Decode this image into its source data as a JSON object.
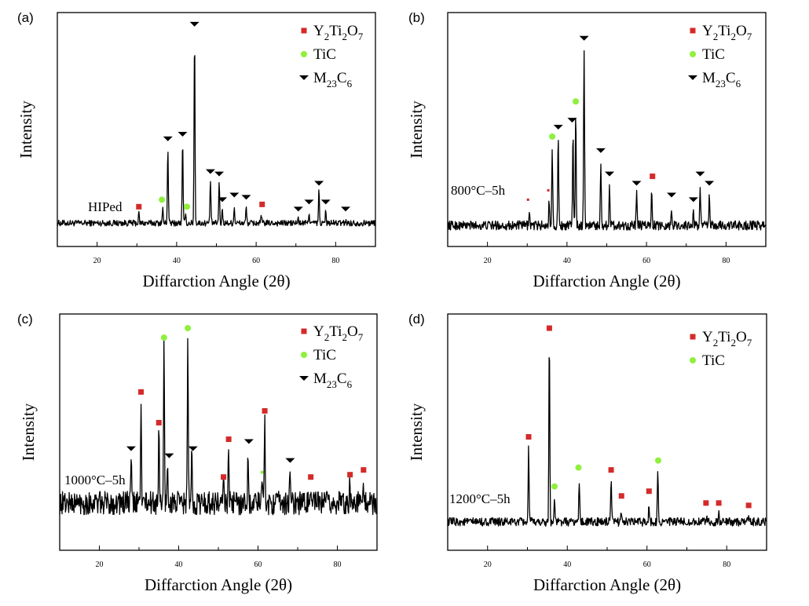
{
  "chart_data": [
    {
      "type": "line",
      "panel_label": "(a)",
      "xlabel": "Diffarction Angle (2θ)",
      "ylabel": "Intensity",
      "xlim": [
        10,
        90
      ],
      "ylim": [
        0,
        100
      ],
      "xticks": [
        20,
        40,
        60,
        80
      ],
      "annotation": "HIPed",
      "legend_position": "top-right",
      "legend": [
        "Y2Ti2O7",
        "TiC",
        "M23C6"
      ],
      "baseline": 10,
      "noise": 1.3,
      "peaks": [
        [
          30.5,
          14
        ],
        [
          36.5,
          16
        ],
        [
          37.8,
          43
        ],
        [
          41.5,
          45
        ],
        [
          42.2,
          14
        ],
        [
          44.5,
          92
        ],
        [
          48.5,
          29
        ],
        [
          50.7,
          28
        ],
        [
          51.5,
          16
        ],
        [
          54.5,
          17
        ],
        [
          57.5,
          17
        ],
        [
          61.3,
          13
        ],
        [
          70.6,
          12
        ],
        [
          73.3,
          15
        ],
        [
          75.8,
          24
        ],
        [
          77.5,
          15
        ],
        [
          82.5,
          11
        ]
      ],
      "markers": [
        {
          "phase": "Y2Ti2O7",
          "x": 30.5,
          "y": 17
        },
        {
          "phase": "Y2Ti2O7",
          "x": 61.5,
          "y": 18
        },
        {
          "phase": "TiC",
          "x": 36.3,
          "y": 20
        },
        {
          "phase": "TiC",
          "x": 42.6,
          "y": 17
        },
        {
          "phase": "M23C6",
          "x": 37.8,
          "y": 46
        },
        {
          "phase": "M23C6",
          "x": 41.5,
          "y": 48
        },
        {
          "phase": "M23C6",
          "x": 44.5,
          "y": 95
        },
        {
          "phase": "M23C6",
          "x": 48.5,
          "y": 32
        },
        {
          "phase": "M23C6",
          "x": 50.7,
          "y": 31
        },
        {
          "phase": "M23C6",
          "x": 51.5,
          "y": 20
        },
        {
          "phase": "M23C6",
          "x": 54.5,
          "y": 22
        },
        {
          "phase": "M23C6",
          "x": 57.5,
          "y": 21
        },
        {
          "phase": "M23C6",
          "x": 70.6,
          "y": 16
        },
        {
          "phase": "M23C6",
          "x": 73.3,
          "y": 19
        },
        {
          "phase": "M23C6",
          "x": 75.8,
          "y": 27
        },
        {
          "phase": "M23C6",
          "x": 77.5,
          "y": 19
        },
        {
          "phase": "M23C6",
          "x": 82.5,
          "y": 16
        }
      ]
    },
    {
      "type": "line",
      "panel_label": "(b)",
      "xlabel": "Diffarction Angle (2θ)",
      "ylabel": "Intensity",
      "xlim": [
        10,
        90
      ],
      "ylim": [
        0,
        100
      ],
      "xticks": [
        20,
        40,
        60,
        80
      ],
      "annotation": "800°C–5h",
      "legend_position": "top-right",
      "legend": [
        "Y2Ti2O7",
        "TiC",
        "M23C6"
      ],
      "baseline": 9,
      "noise": 2,
      "peaks": [
        [
          30.5,
          16
        ],
        [
          35.5,
          19
        ],
        [
          36.3,
          43
        ],
        [
          37.8,
          47
        ],
        [
          41.5,
          50
        ],
        [
          42.2,
          59
        ],
        [
          44.3,
          84
        ],
        [
          48.5,
          37
        ],
        [
          50.7,
          27
        ],
        [
          57.5,
          23
        ],
        [
          61.3,
          26
        ],
        [
          66.3,
          16
        ],
        [
          71.8,
          15
        ],
        [
          73.5,
          26
        ],
        [
          75.8,
          22
        ]
      ],
      "markers": [
        {
          "phase": "Y2Ti2O7",
          "x": 30.2,
          "y": 20,
          "small": true
        },
        {
          "phase": "Y2Ti2O7",
          "x": 35.3,
          "y": 24,
          "small": true
        },
        {
          "phase": "Y2Ti2O7",
          "x": 61.5,
          "y": 30
        },
        {
          "phase": "TiC",
          "x": 36.3,
          "y": 47
        },
        {
          "phase": "TiC",
          "x": 42.2,
          "y": 62
        },
        {
          "phase": "M23C6",
          "x": 37.8,
          "y": 51
        },
        {
          "phase": "M23C6",
          "x": 41.3,
          "y": 54
        },
        {
          "phase": "M23C6",
          "x": 44.3,
          "y": 89
        },
        {
          "phase": "M23C6",
          "x": 48.5,
          "y": 41
        },
        {
          "phase": "M23C6",
          "x": 50.7,
          "y": 31
        },
        {
          "phase": "M23C6",
          "x": 57.5,
          "y": 27
        },
        {
          "phase": "M23C6",
          "x": 66.3,
          "y": 22
        },
        {
          "phase": "M23C6",
          "x": 71.8,
          "y": 20
        },
        {
          "phase": "M23C6",
          "x": 73.5,
          "y": 31
        },
        {
          "phase": "M23C6",
          "x": 75.8,
          "y": 27
        }
      ]
    },
    {
      "type": "line",
      "panel_label": "(c)",
      "xlabel": "Diffarction Angle (2θ)",
      "ylabel": "Intensity",
      "xlim": [
        10,
        90
      ],
      "ylim": [
        0,
        100
      ],
      "xticks": [
        20,
        40,
        60,
        80
      ],
      "annotation": "1000°C–5h",
      "legend_position": "top-right",
      "legend": [
        "Y2Ti2O7",
        "TiC",
        "M23C6"
      ],
      "baseline": 20,
      "noise": 5,
      "peaks": [
        [
          28,
          40
        ],
        [
          30.5,
          63
        ],
        [
          35,
          50
        ],
        [
          36.3,
          87
        ],
        [
          37.2,
          37
        ],
        [
          42.3,
          90
        ],
        [
          43.3,
          40
        ],
        [
          51.3,
          28
        ],
        [
          52.6,
          43
        ],
        [
          57.5,
          42
        ],
        [
          61,
          32
        ],
        [
          61.7,
          55
        ],
        [
          68,
          35
        ],
        [
          73.2,
          29
        ],
        [
          83.1,
          29
        ],
        [
          86.6,
          30
        ]
      ],
      "markers": [
        {
          "phase": "Y2Ti2O7",
          "x": 30.5,
          "y": 67
        },
        {
          "phase": "Y2Ti2O7",
          "x": 35,
          "y": 54
        },
        {
          "phase": "Y2Ti2O7",
          "x": 51.3,
          "y": 31
        },
        {
          "phase": "Y2Ti2O7",
          "x": 52.6,
          "y": 47
        },
        {
          "phase": "Y2Ti2O7",
          "x": 61.7,
          "y": 59
        },
        {
          "phase": "Y2Ti2O7",
          "x": 73.3,
          "y": 31
        },
        {
          "phase": "Y2Ti2O7",
          "x": 83.2,
          "y": 32
        },
        {
          "phase": "Y2Ti2O7",
          "x": 86.6,
          "y": 34
        },
        {
          "phase": "TiC",
          "x": 36.3,
          "y": 90
        },
        {
          "phase": "TiC",
          "x": 42.3,
          "y": 94
        },
        {
          "phase": "TiC",
          "x": 61,
          "y": 33,
          "small": true
        },
        {
          "phase": "M23C6",
          "x": 28,
          "y": 43
        },
        {
          "phase": "M23C6",
          "x": 37.6,
          "y": 40
        },
        {
          "phase": "M23C6",
          "x": 43.6,
          "y": 43
        },
        {
          "phase": "M23C6",
          "x": 57.7,
          "y": 46
        },
        {
          "phase": "M23C6",
          "x": 68.1,
          "y": 38
        }
      ]
    },
    {
      "type": "line",
      "panel_label": "(d)",
      "xlabel": "Diffarction Angle (2θ)",
      "ylabel": "Intensity",
      "xlim": [
        10,
        90
      ],
      "ylim": [
        0,
        100
      ],
      "xticks": [
        20,
        40,
        60,
        80
      ],
      "annotation": "1200°C–5h",
      "legend_position": "top-right",
      "legend": [
        "Y2Ti2O7",
        "TiC"
      ],
      "baseline": 12,
      "noise": 1.8,
      "peaks": [
        [
          30.3,
          43
        ],
        [
          35.5,
          91
        ],
        [
          36.8,
          22
        ],
        [
          43,
          30
        ],
        [
          51,
          30
        ],
        [
          53.5,
          18
        ],
        [
          60.5,
          20
        ],
        [
          62.7,
          34
        ],
        [
          75,
          16
        ],
        [
          78,
          16
        ],
        [
          85.5,
          14
        ]
      ],
      "markers": [
        {
          "phase": "Y2Ti2O7",
          "x": 30.3,
          "y": 48
        },
        {
          "phase": "Y2Ti2O7",
          "x": 35.5,
          "y": 94
        },
        {
          "phase": "Y2Ti2O7",
          "x": 51,
          "y": 34
        },
        {
          "phase": "Y2Ti2O7",
          "x": 53.6,
          "y": 23
        },
        {
          "phase": "Y2Ti2O7",
          "x": 60.5,
          "y": 25
        },
        {
          "phase": "Y2Ti2O7",
          "x": 74.8,
          "y": 20
        },
        {
          "phase": "Y2Ti2O7",
          "x": 78,
          "y": 20
        },
        {
          "phase": "Y2Ti2O7",
          "x": 85.5,
          "y": 19
        },
        {
          "phase": "TiC",
          "x": 36.8,
          "y": 27
        },
        {
          "phase": "TiC",
          "x": 42.8,
          "y": 35
        },
        {
          "phase": "TiC",
          "x": 62.8,
          "y": 38
        }
      ]
    }
  ],
  "colors": {
    "Y2Ti2O7": "#d42a2a",
    "TiC": "#8ef03c",
    "M23C6": "#000000",
    "trace": "#000000"
  }
}
